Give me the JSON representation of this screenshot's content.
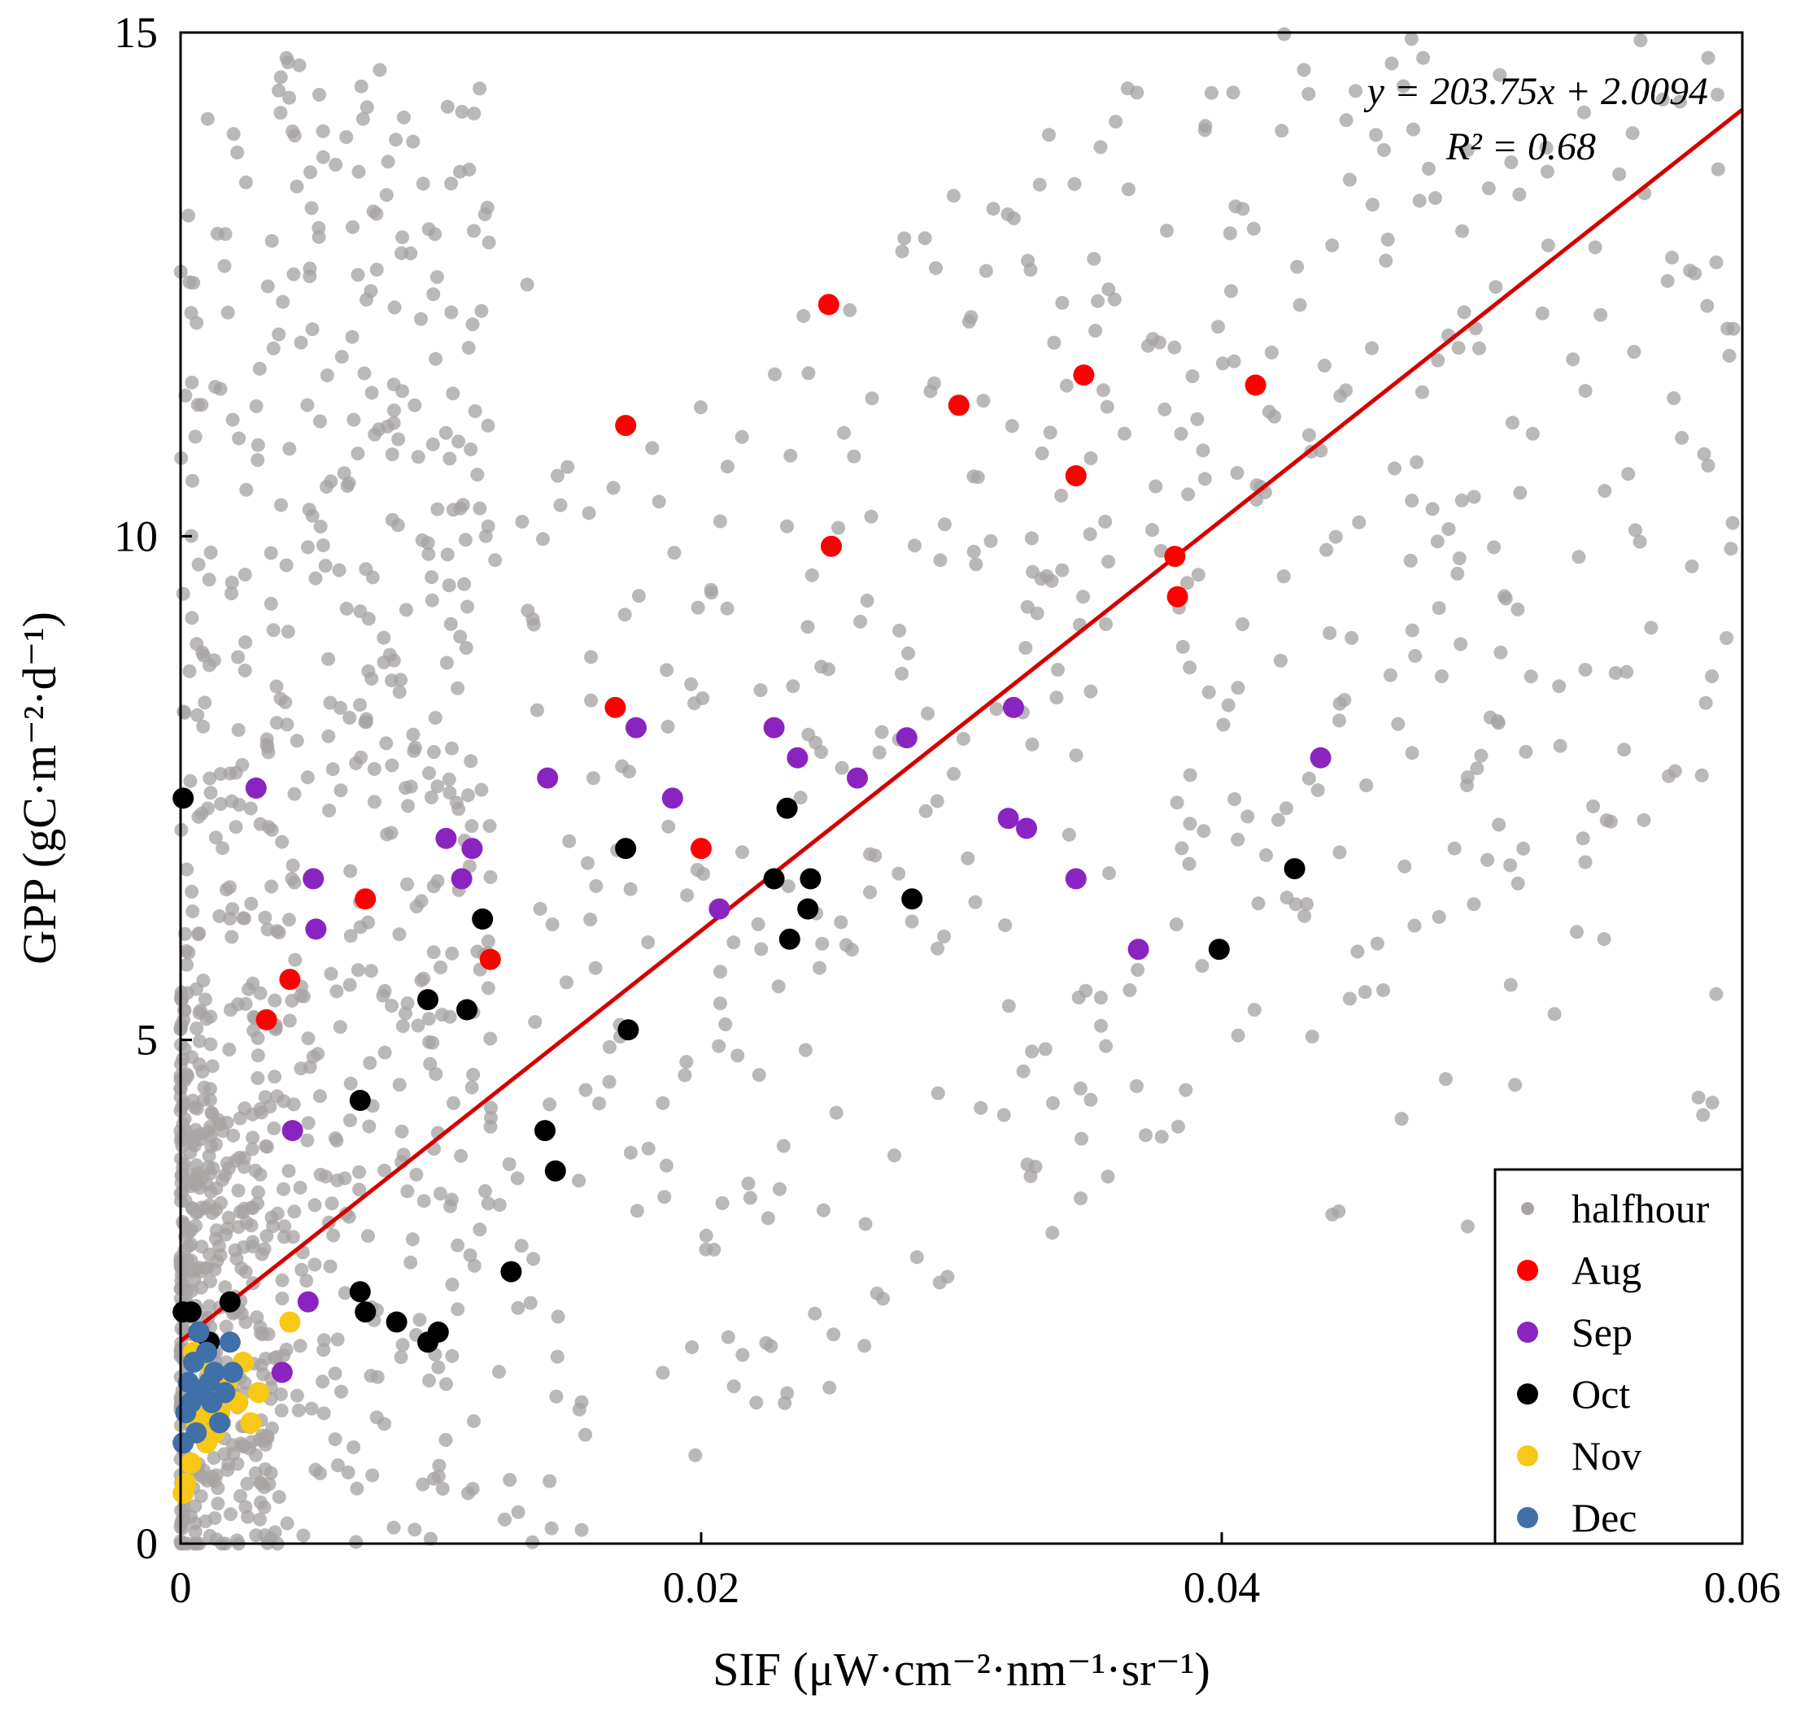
{
  "chart_data": {
    "type": "scatter",
    "xlabel": "SIF (μW·cm⁻²·nm⁻¹·sr⁻¹)",
    "ylabel": "GPP (gC·m⁻²·d⁻¹)",
    "xlim": [
      0,
      0.06
    ],
    "ylim": [
      0,
      15
    ],
    "x_ticks": [
      0,
      0.02,
      0.04,
      0.06
    ],
    "x_tick_labels": [
      "0",
      "0.02",
      "0.04",
      "0.06"
    ],
    "y_ticks": [
      0,
      5,
      10,
      15
    ],
    "y_tick_labels": [
      "0",
      "5",
      "10",
      "15"
    ],
    "grid": false,
    "legend_position": "bottom-right",
    "annotation": {
      "equation": "y = 203.75x + 2.0094",
      "r2": "R² = 0.68"
    },
    "fit_line": {
      "slope": 203.75,
      "intercept": 2.0094,
      "x_range": [
        0,
        0.06
      ],
      "color": "#d40000"
    },
    "halfhour": {
      "name": "halfhour",
      "color": "#a8a4a4",
      "description": "background scatter of ~1500 half-hourly points, dense near origin",
      "count": 1500,
      "seed": 7
    },
    "series": [
      {
        "name": "Aug",
        "color": "#ff0000",
        "x": [
          0.0033,
          0.0042,
          0.0071,
          0.0119,
          0.0167,
          0.0171,
          0.02,
          0.0249,
          0.025,
          0.0299,
          0.0344,
          0.0347,
          0.0382,
          0.0383,
          0.0413
        ],
        "y": [
          5.2,
          5.6,
          6.4,
          5.8,
          8.3,
          11.1,
          6.9,
          12.3,
          9.9,
          11.3,
          10.6,
          11.6,
          9.8,
          9.4,
          11.5
        ]
      },
      {
        "name": "Sep",
        "color": "#8a24c0",
        "x": [
          0.0029,
          0.0039,
          0.0043,
          0.0051,
          0.0052,
          0.0102,
          0.0108,
          0.0112,
          0.0141,
          0.0175,
          0.0189,
          0.0207,
          0.0228,
          0.0237,
          0.026,
          0.0279,
          0.0318,
          0.032,
          0.0325,
          0.0344,
          0.0368,
          0.0438,
          0.0049
        ],
        "y": [
          7.5,
          1.7,
          4.1,
          6.6,
          6.1,
          7.0,
          6.6,
          6.9,
          7.6,
          8.1,
          7.4,
          6.3,
          8.1,
          7.8,
          7.6,
          8.0,
          7.2,
          8.3,
          7.1,
          6.6,
          5.9,
          7.8,
          2.4
        ]
      },
      {
        "name": "Oct",
        "color": "#000000",
        "x": [
          0.0001,
          0.0001,
          0.0004,
          0.0007,
          0.0011,
          0.0019,
          0.0069,
          0.0069,
          0.0071,
          0.0083,
          0.0095,
          0.0099,
          0.0095,
          0.011,
          0.0116,
          0.0127,
          0.014,
          0.0144,
          0.0171,
          0.0172,
          0.0228,
          0.0233,
          0.0234,
          0.0241,
          0.0242,
          0.0281,
          0.0399,
          0.0428
        ],
        "y": [
          7.4,
          2.3,
          2.3,
          2.1,
          2.0,
          2.4,
          4.4,
          2.5,
          2.3,
          2.2,
          2.0,
          2.1,
          5.4,
          5.3,
          6.2,
          2.7,
          4.1,
          3.7,
          6.9,
          5.1,
          6.6,
          7.3,
          6.0,
          6.3,
          6.6,
          6.4,
          5.9,
          6.7
        ]
      },
      {
        "name": "Nov",
        "color": "#f8c817",
        "x": [
          0.0002,
          0.0004,
          0.0006,
          0.0008,
          0.001,
          0.0012,
          0.0015,
          0.0018,
          0.0022,
          0.0024,
          0.0027,
          0.003,
          0.0042,
          0.0005,
          0.0013,
          0.002,
          0.0001,
          0.0009
        ],
        "y": [
          0.6,
          0.8,
          1.2,
          1.5,
          1.0,
          1.7,
          1.3,
          1.6,
          1.4,
          1.8,
          1.2,
          1.5,
          2.2,
          1.9,
          1.1,
          1.7,
          0.5,
          1.3
        ]
      },
      {
        "name": "Dec",
        "color": "#3f70a8",
        "x": [
          0.0001,
          0.0002,
          0.0003,
          0.0005,
          0.0006,
          0.0008,
          0.001,
          0.0012,
          0.0013,
          0.0015,
          0.0017,
          0.0019,
          0.002,
          0.0007,
          0.0004,
          0.0011
        ],
        "y": [
          1.0,
          1.3,
          1.6,
          1.8,
          1.1,
          1.5,
          1.9,
          1.4,
          1.7,
          1.2,
          1.5,
          2.0,
          1.7,
          2.1,
          1.4,
          1.6
        ]
      }
    ],
    "legend_entries": [
      "halfhour",
      "Aug",
      "Sep",
      "Oct",
      "Nov",
      "Dec"
    ]
  }
}
